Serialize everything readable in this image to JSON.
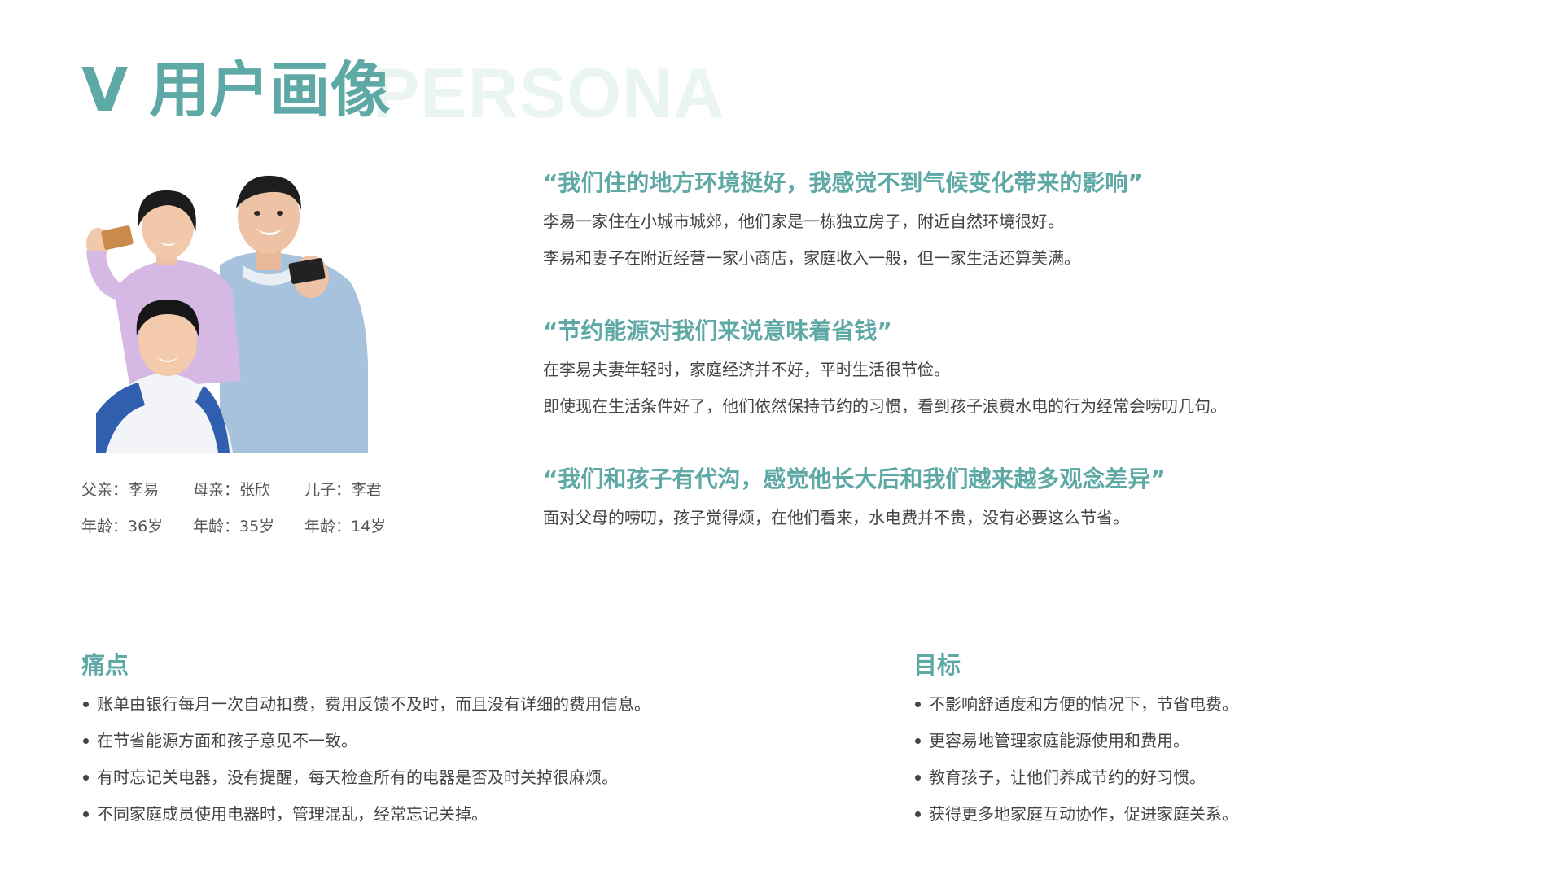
{
  "header": {
    "number": "V",
    "title": "用户画像",
    "watermark": "PERSONA"
  },
  "family": {
    "members": [
      {
        "role_label": "父亲：李易",
        "age_label": "年龄：36岁"
      },
      {
        "role_label": "母亲：张欣",
        "age_label": "年龄：35岁"
      },
      {
        "role_label": "儿子：李君",
        "age_label": "年龄：14岁"
      }
    ]
  },
  "quotes": [
    {
      "title": "“我们住的地方环境挺好，我感觉不到气候变化带来的影响”",
      "lines": [
        "李易一家住在小城市城郊，他们家是一栋独立房子，附近自然环境很好。",
        "李易和妻子在附近经营一家小商店，家庭收入一般，但一家生活还算美满。"
      ]
    },
    {
      "title": "“节约能源对我们来说意味着省钱”",
      "lines": [
        "在李易夫妻年轻时，家庭经济并不好，平时生活很节俭。",
        "即使现在生活条件好了，他们依然保持节约的习惯，看到孩子浪费水电的行为经常会唠叨几句。"
      ]
    },
    {
      "title": "“我们和孩子有代沟，感觉他长大后和我们越来越多观念差异”",
      "lines": [
        "面对父母的唠叨，孩子觉得烦，在他们看来，水电费并不贵，没有必要这么节省。"
      ]
    }
  ],
  "pain_points": {
    "title": "痛点",
    "items": [
      "账单由银行每月一次自动扣费，费用反馈不及时，而且没有详细的费用信息。",
      "在节省能源方面和孩子意见不一致。",
      "有时忘记关电器，没有提醒，每天检查所有的电器是否及时关掉很麻烦。",
      "不同家庭成员使用电器时，管理混乱，经常忘记关掉。"
    ]
  },
  "goals": {
    "title": "目标",
    "items": [
      "不影响舒适度和方便的情况下，节省电费。",
      "更容易地管理家庭能源使用和费用。",
      "教育孩子，让他们养成节约的好习惯。",
      "获得更多地家庭互动协作，促进家庭关系。"
    ]
  },
  "colors": {
    "accent": "#5ea9a5",
    "watermark": "#eaf4f3",
    "body_text": "#444444"
  }
}
